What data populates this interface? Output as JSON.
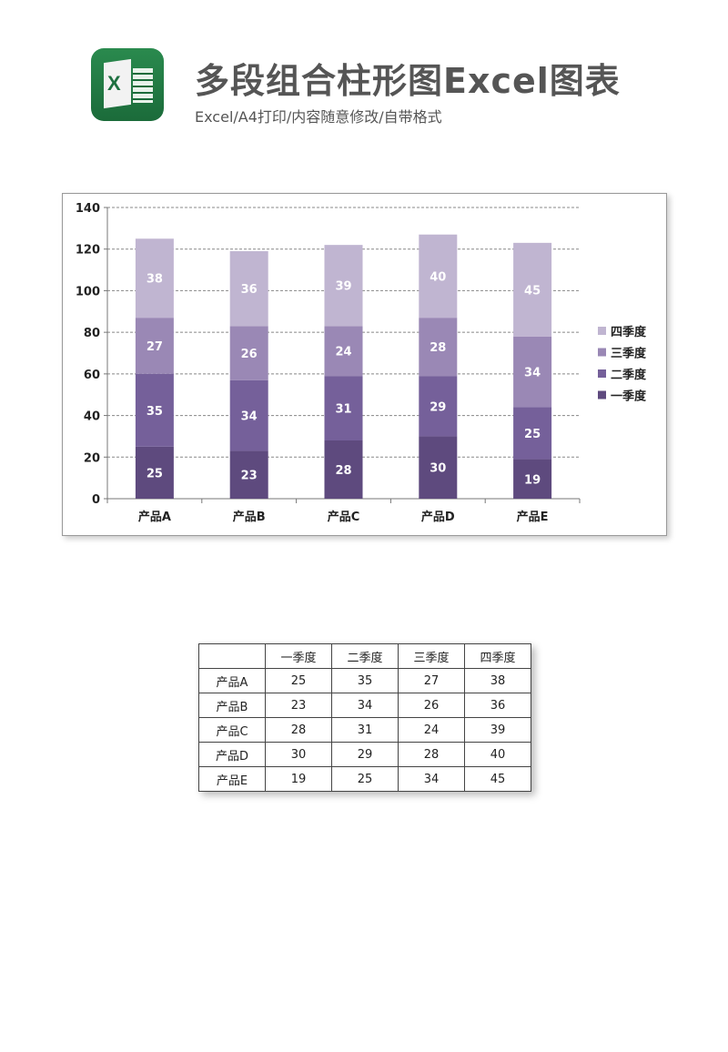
{
  "header": {
    "title": "多段组合柱形图Excel图表",
    "subtitle": "Excel/A4打印/内容随意修改/自带格式",
    "icon": "excel-icon"
  },
  "chart_data": {
    "type": "bar",
    "stacked": true,
    "categories": [
      "产品A",
      "产品B",
      "产品C",
      "产品D",
      "产品E"
    ],
    "series": [
      {
        "name": "一季度",
        "values": [
          25,
          23,
          28,
          30,
          19
        ],
        "color": "#5e4a7e"
      },
      {
        "name": "二季度",
        "values": [
          35,
          34,
          31,
          29,
          25
        ],
        "color": "#75609a"
      },
      {
        "name": "三季度",
        "values": [
          27,
          26,
          24,
          28,
          34
        ],
        "color": "#9a88b5"
      },
      {
        "name": "四季度",
        "values": [
          38,
          36,
          39,
          40,
          45
        ],
        "color": "#c0b5d1"
      }
    ],
    "ylim": [
      0,
      140
    ],
    "yticks": [
      0,
      20,
      40,
      60,
      80,
      100,
      120,
      140
    ],
    "grid": true,
    "legend": "right",
    "data_labels": true
  },
  "table": {
    "headers": [
      "",
      "一季度",
      "二季度",
      "三季度",
      "四季度"
    ],
    "rows": [
      [
        "产品A",
        "25",
        "35",
        "27",
        "38"
      ],
      [
        "产品B",
        "23",
        "34",
        "26",
        "36"
      ],
      [
        "产品C",
        "28",
        "31",
        "24",
        "39"
      ],
      [
        "产品D",
        "30",
        "29",
        "28",
        "40"
      ],
      [
        "产品E",
        "19",
        "25",
        "34",
        "45"
      ]
    ]
  }
}
